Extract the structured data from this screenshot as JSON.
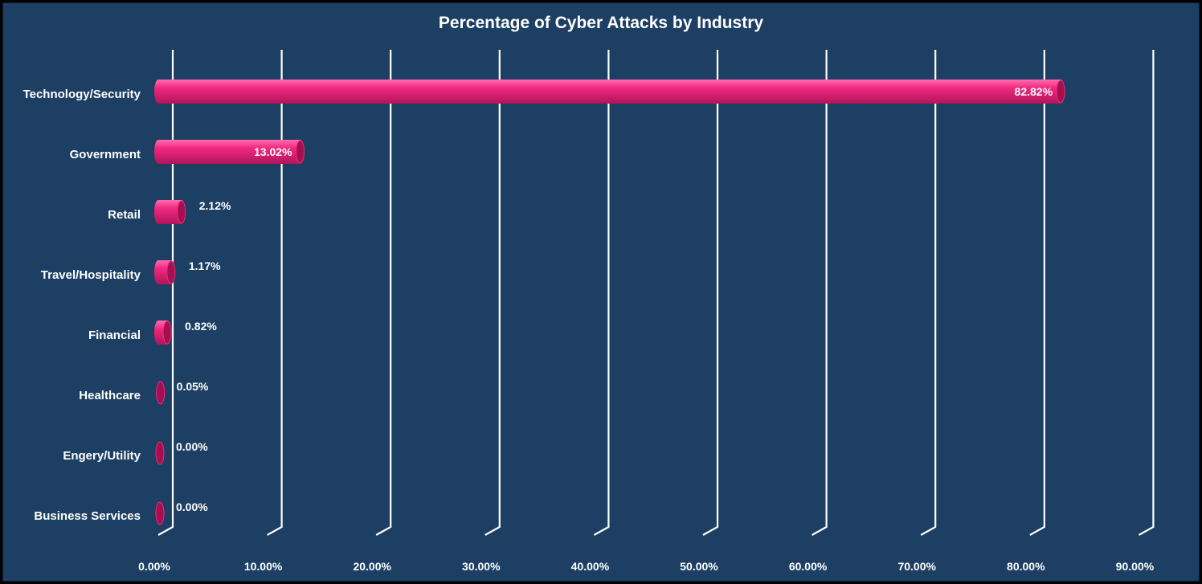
{
  "chart_data": {
    "type": "bar",
    "orientation": "horizontal",
    "title": "Percentage of Cyber Attacks by Industry",
    "xlabel": "",
    "ylabel": "",
    "categories": [
      "Technology/Security",
      "Government",
      "Retail",
      "Travel/Hospitality",
      "Financial",
      "Healthcare",
      "Engery/Utility",
      "Business Services"
    ],
    "values": [
      82.82,
      13.02,
      2.12,
      1.17,
      0.82,
      0.05,
      0.0,
      0.0
    ],
    "data_labels": [
      "82.82%",
      "13.02%",
      "2.12%",
      "1.17%",
      "0.82%",
      "0.05%",
      "0.00%",
      "0.00%"
    ],
    "xlim": [
      0,
      90
    ],
    "x_ticks": [
      0,
      10,
      20,
      30,
      40,
      50,
      60,
      70,
      80,
      90
    ],
    "x_tick_labels": [
      "0.00%",
      "10.00%",
      "20.00%",
      "30.00%",
      "40.00%",
      "50.00%",
      "60.00%",
      "70.00%",
      "80.00%",
      "90.00%"
    ],
    "grid": true,
    "legend": "none",
    "style": "3d-cylinder",
    "colors": {
      "background": "#1c3f63",
      "bar": "#f0287f",
      "bar_highlight": "#ff5aa5",
      "bar_shadow": "#a3104f",
      "grid": "#ffffff",
      "text": "#ffffff"
    }
  }
}
